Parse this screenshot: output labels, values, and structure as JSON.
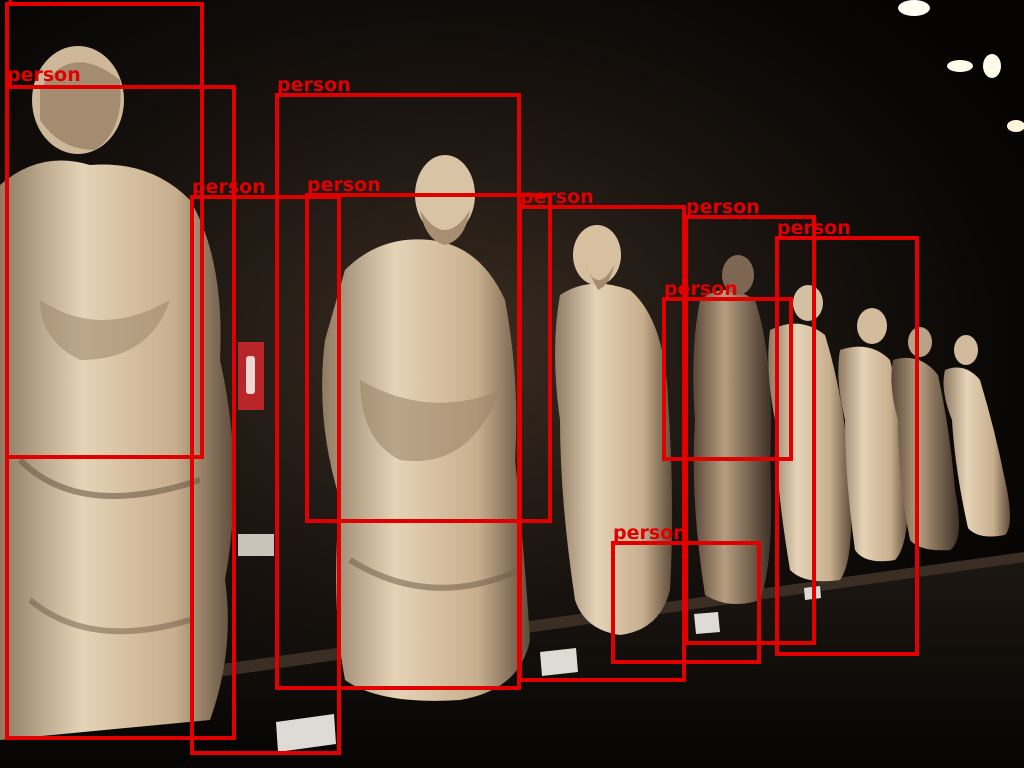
{
  "image": {
    "scene": "museum-gallery-statues",
    "colors": {
      "box": "#e00000",
      "stone": "#d9c4a6",
      "shadow": "#2a1f17",
      "background": "#050403"
    }
  },
  "detections": [
    {
      "label": "person"
    },
    {
      "label": "person"
    },
    {
      "label": "person"
    },
    {
      "label": "person"
    },
    {
      "label": "person"
    },
    {
      "label": "person"
    },
    {
      "label": "person"
    },
    {
      "label": "person"
    },
    {
      "label": "person"
    },
    {
      "label": "person"
    }
  ]
}
